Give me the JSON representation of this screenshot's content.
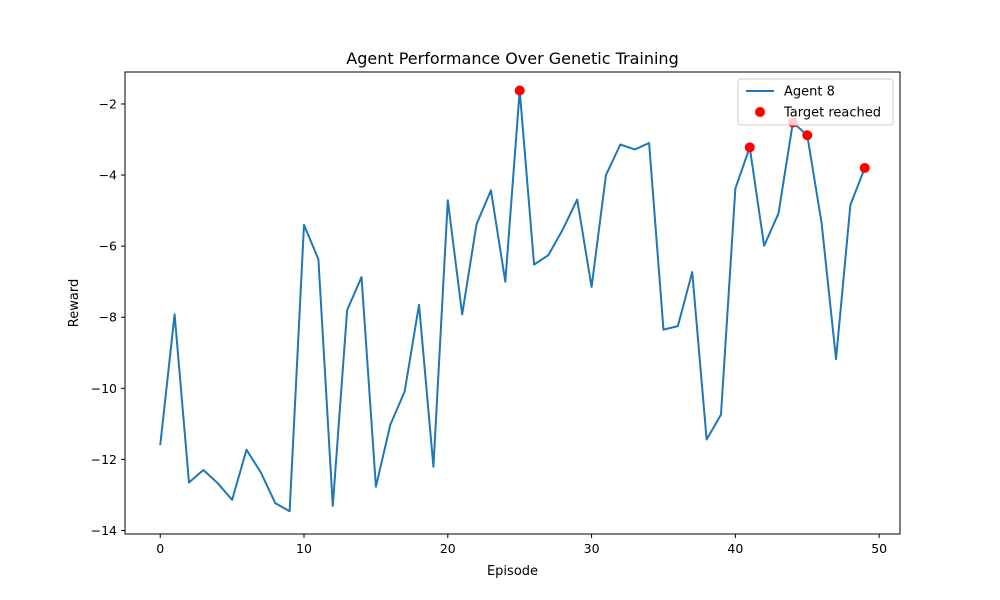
{
  "chart_data": {
    "type": "line",
    "title": "Agent Performance Over Genetic Training",
    "xlabel": "Episode",
    "ylabel": "Reward",
    "xlim": [
      -2.45,
      51.45
    ],
    "ylim": [
      -14.1,
      -1.1
    ],
    "xticks": [
      0,
      10,
      20,
      30,
      40,
      50
    ],
    "yticks": [
      -14,
      -12,
      -10,
      -8,
      -6,
      -4,
      -2
    ],
    "grid": false,
    "legend_position": "top-right",
    "series": [
      {
        "name": "Agent 8",
        "kind": "line",
        "color": "#1f77b4",
        "x": [
          0,
          1,
          2,
          3,
          4,
          5,
          6,
          7,
          8,
          9,
          10,
          11,
          12,
          13,
          14,
          15,
          16,
          17,
          18,
          19,
          20,
          21,
          22,
          23,
          24,
          25,
          26,
          27,
          28,
          29,
          30,
          31,
          32,
          33,
          34,
          35,
          36,
          37,
          38,
          39,
          40,
          41,
          42,
          43,
          44,
          45,
          46,
          47,
          48,
          49
        ],
        "values": [
          -11.6,
          -7.92,
          -12.65,
          -12.3,
          -12.67,
          -13.14,
          -11.73,
          -12.37,
          -13.23,
          -13.46,
          -5.4,
          -6.37,
          -13.31,
          -7.8,
          -6.87,
          -12.77,
          -11.03,
          -10.09,
          -7.65,
          -12.21,
          -4.71,
          -7.92,
          -5.38,
          -4.43,
          -7.0,
          -1.62,
          -6.52,
          -6.25,
          -5.53,
          -4.69,
          -7.15,
          -4.0,
          -3.14,
          -3.28,
          -3.1,
          -8.35,
          -8.25,
          -6.73,
          -11.44,
          -10.74,
          -4.38,
          -3.22,
          -5.99,
          -5.08,
          -2.52,
          -2.88,
          -5.36,
          -9.18,
          -4.84,
          -3.8
        ]
      },
      {
        "name": "Target reached",
        "kind": "scatter",
        "color": "#ff0000",
        "x": [
          25,
          41,
          44,
          45,
          49
        ],
        "values": [
          -1.62,
          -3.22,
          -2.52,
          -2.88,
          -3.8
        ]
      }
    ]
  }
}
